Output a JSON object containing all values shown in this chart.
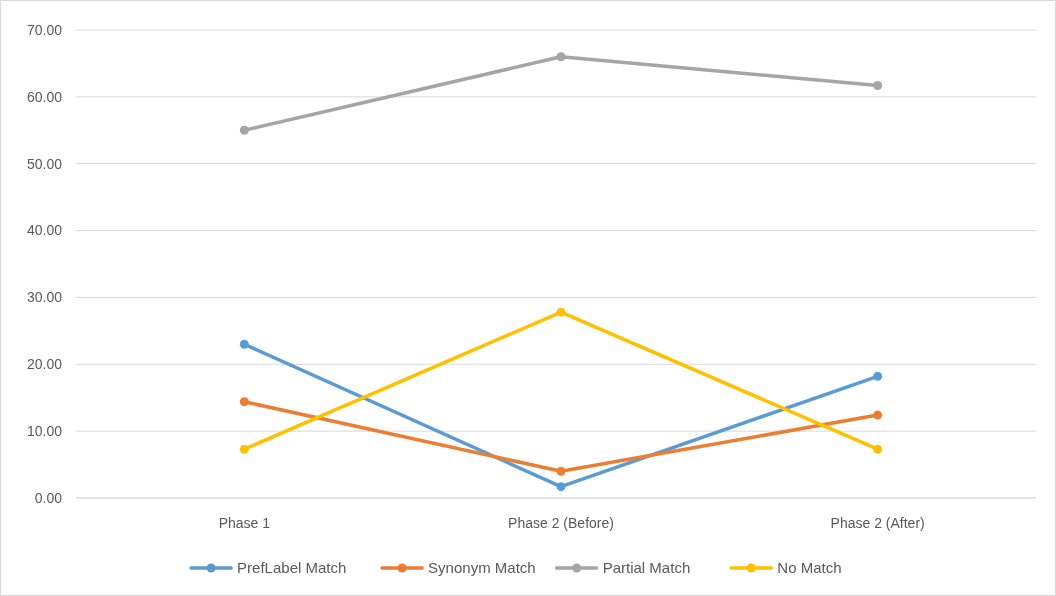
{
  "chart_data": {
    "type": "line",
    "categories": [
      "Phase 1",
      "Phase 2 (Before)",
      "Phase 2 (After)"
    ],
    "series": [
      {
        "name": "PrefLabel Match",
        "color": "#5b9bd5",
        "values": [
          23.0,
          1.7,
          18.2
        ]
      },
      {
        "name": "Synonym Match",
        "color": "#ed7d31",
        "values": [
          14.4,
          4.0,
          12.4
        ]
      },
      {
        "name": "Partial Match",
        "color": "#a5a5a5",
        "values": [
          55.0,
          66.0,
          61.7
        ]
      },
      {
        "name": "No Match",
        "color": "#ffc000",
        "values": [
          7.3,
          27.8,
          7.3
        ]
      }
    ],
    "ylim": [
      0,
      70
    ],
    "yticks": [
      {
        "value": 0,
        "label": "0.00"
      },
      {
        "value": 10,
        "label": "10.00"
      },
      {
        "value": 20,
        "label": "20.00"
      },
      {
        "value": 30,
        "label": "30.00"
      },
      {
        "value": 40,
        "label": "40.00"
      },
      {
        "value": 50,
        "label": "50.00"
      },
      {
        "value": 60,
        "label": "60.00"
      },
      {
        "value": 70,
        "label": "70.00"
      }
    ],
    "grid": "y",
    "legend": "bottom",
    "marker": "circle",
    "line_style": "solid"
  }
}
